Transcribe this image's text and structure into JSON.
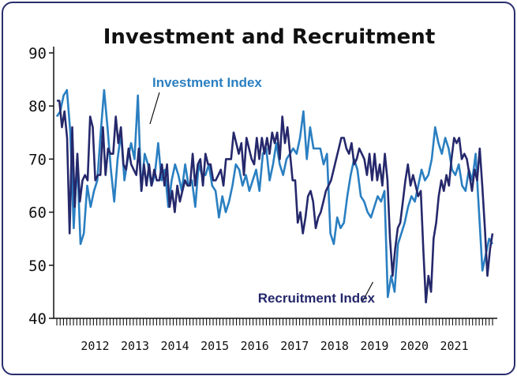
{
  "colors": {
    "frame": "#2b2d6e",
    "investment": "#2a7fc1",
    "recruitment": "#25286b",
    "axis": "#111111"
  },
  "chart_data": {
    "type": "line",
    "title": "Investment and Recruitment",
    "xlabel": "",
    "ylabel": "",
    "ylim": [
      40,
      90
    ],
    "yticks": [
      40,
      50,
      60,
      70,
      80,
      90
    ],
    "x_start": "2011-07",
    "x_end": "2022-06",
    "year_labels": [
      "2012",
      "2013",
      "2014",
      "2015",
      "2016",
      "2017",
      "2018",
      "2019",
      "2020",
      "2021"
    ],
    "annotations": [
      {
        "text": "Investment Index",
        "series": "Investment Index",
        "x": "2013-11"
      },
      {
        "text": "Recruitment Index",
        "series": "Recruitment Index",
        "x": "2019-07"
      }
    ],
    "series": [
      {
        "name": "Investment Index",
        "color": "#2a7fc1",
        "values": [
          78,
          79,
          82,
          83,
          75,
          57,
          70,
          54,
          56,
          65,
          61,
          64,
          66,
          75,
          83,
          76,
          68,
          62,
          70,
          75,
          66,
          70,
          73,
          70,
          82,
          64,
          71,
          69,
          65,
          67,
          73,
          66,
          68,
          61,
          66,
          69,
          67,
          64,
          69,
          65,
          66,
          61,
          69,
          67,
          67,
          69,
          65,
          64,
          59,
          63,
          60,
          62,
          65,
          69,
          68,
          65,
          67,
          64,
          66,
          68,
          64,
          71,
          72,
          66,
          69,
          73,
          69,
          67,
          70,
          71,
          72,
          71,
          74,
          79,
          70,
          76,
          72,
          72,
          72,
          69,
          71,
          56,
          54,
          59,
          57,
          58,
          63,
          67,
          70,
          68,
          63,
          62,
          60,
          59,
          61,
          63,
          62,
          64,
          44,
          48,
          45,
          54,
          56,
          58,
          61,
          63,
          62,
          65,
          68,
          66,
          67,
          70,
          76,
          73,
          71,
          74,
          72,
          68,
          67,
          69,
          65,
          64,
          68,
          66,
          71,
          60,
          49,
          52,
          55,
          54
        ]
      },
      {
        "name": "Recruitment Index",
        "color": "#25286b",
        "values": [
          81,
          81,
          76,
          79,
          74,
          56,
          76,
          61,
          71,
          62,
          66,
          67,
          66,
          78,
          76,
          66,
          67,
          67,
          76,
          67,
          72,
          71,
          71,
          78,
          73,
          76,
          69,
          68,
          72,
          69,
          68,
          67,
          72,
          64,
          69,
          65,
          69,
          65,
          68,
          66,
          66,
          69,
          65,
          69,
          61,
          64,
          60,
          65,
          62,
          64,
          66,
          65,
          65,
          71,
          65,
          69,
          70,
          65,
          71,
          69,
          69,
          66,
          66,
          67,
          68,
          65,
          70,
          70,
          70,
          75,
          73,
          71,
          73,
          67,
          74,
          72,
          70,
          69,
          74,
          70,
          74,
          71,
          74,
          71,
          75,
          73,
          75,
          70,
          78,
          73,
          76,
          71,
          66,
          66,
          58,
          60,
          56,
          59,
          63,
          64,
          62,
          57,
          59,
          60,
          62,
          64,
          65,
          66,
          68,
          70,
          72,
          74,
          74,
          72,
          71,
          73,
          69,
          70,
          72,
          71,
          70,
          67,
          71,
          66,
          71,
          66,
          69,
          65,
          71,
          66,
          55,
          48,
          53,
          57,
          58,
          62,
          66,
          69,
          65,
          67,
          65,
          63,
          64,
          53,
          43,
          48,
          45,
          55,
          58,
          63,
          66,
          64,
          67,
          65,
          70,
          74,
          73,
          74,
          70,
          71,
          70,
          67,
          64,
          68,
          66,
          72,
          65,
          57,
          48,
          53,
          56
        ]
      }
    ]
  }
}
